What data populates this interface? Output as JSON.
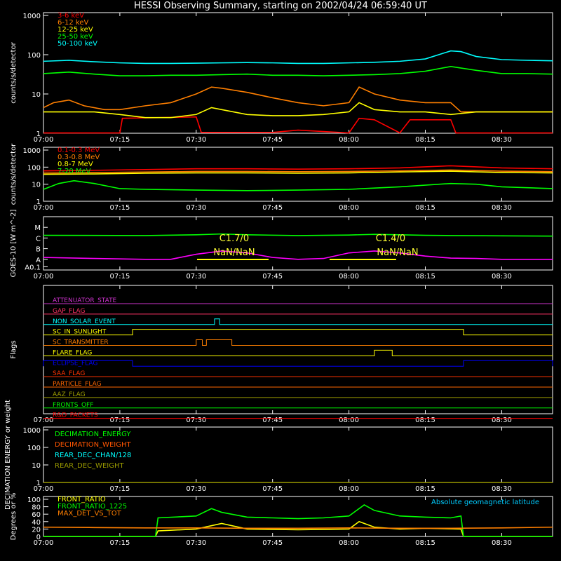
{
  "title": "HESSI Observing Summary, starting on 2002/04/24 06:59:40 UT",
  "time_ticks": [
    "07:00",
    "07:15",
    "07:30",
    "07:45",
    "08:00",
    "08:15",
    "08:30"
  ],
  "chart_data": [
    {
      "id": "rates",
      "type": "line",
      "ylabel": "counts/s/detector",
      "yscale": "log",
      "ylim": [
        1,
        1000
      ],
      "yticks": [
        "1",
        "10",
        "100",
        "1000"
      ],
      "series": [
        {
          "name": "3-6 keV",
          "color": "#ff0000",
          "x": [
            0,
            15,
            15.5,
            30,
            31,
            45,
            50,
            60,
            62,
            65,
            70,
            72,
            80,
            81,
            100
          ],
          "y": [
            1.02,
            1.02,
            2.4,
            2.6,
            1.05,
            1.05,
            1.2,
            1.02,
            2.4,
            2.2,
            1.02,
            2.2,
            2.2,
            1.02,
            1.02
          ]
        },
        {
          "name": "6-12 keV",
          "color": "#ff7f00",
          "x": [
            0,
            2,
            5,
            8,
            12,
            15,
            20,
            25,
            30,
            33,
            35,
            40,
            45,
            50,
            55,
            60,
            62,
            65,
            70,
            75,
            80,
            82,
            85,
            90,
            95,
            100
          ],
          "y": [
            4.5,
            6,
            7,
            5,
            4,
            4,
            5,
            6,
            10,
            15,
            14,
            11,
            8,
            6,
            5,
            6,
            15,
            10,
            7,
            6,
            6,
            3.5,
            3.5,
            3.5,
            3.5,
            3.5
          ]
        },
        {
          "name": "12-25 keV",
          "color": "#ffff00",
          "x": [
            0,
            5,
            10,
            15,
            20,
            25,
            30,
            33,
            35,
            40,
            45,
            50,
            55,
            60,
            62,
            65,
            70,
            75,
            80,
            85,
            90,
            95,
            100
          ],
          "y": [
            3.5,
            3.5,
            3.5,
            3,
            2.5,
            2.5,
            3,
            4.5,
            4,
            3,
            2.8,
            2.8,
            3,
            3.5,
            6,
            4,
            3.5,
            3.5,
            3,
            3.5,
            3.5,
            3.5,
            3.5
          ]
        },
        {
          "name": "25-50 keV",
          "color": "#00ff00",
          "x": [
            0,
            5,
            10,
            15,
            20,
            25,
            30,
            35,
            40,
            45,
            50,
            55,
            60,
            65,
            70,
            75,
            80,
            85,
            90,
            95,
            100
          ],
          "y": [
            33,
            36,
            32,
            29,
            29,
            30,
            30,
            31,
            32,
            30,
            30,
            29,
            30,
            31,
            33,
            38,
            50,
            40,
            33,
            33,
            32
          ]
        },
        {
          "name": "50-100 keV",
          "color": "#00ffff",
          "x": [
            0,
            5,
            10,
            15,
            20,
            25,
            30,
            35,
            40,
            45,
            50,
            55,
            60,
            65,
            70,
            75,
            80,
            82,
            85,
            90,
            95,
            100
          ],
          "y": [
            68,
            72,
            66,
            62,
            60,
            60,
            61,
            62,
            63,
            62,
            60,
            60,
            62,
            64,
            68,
            78,
            125,
            120,
            90,
            75,
            72,
            70
          ]
        }
      ]
    },
    {
      "id": "high-energy",
      "type": "line",
      "ylabel": "counts/s/detector",
      "yscale": "log",
      "ylim": [
        1,
        1000
      ],
      "yticks": [
        "1",
        "10",
        "100",
        "1000"
      ],
      "series": [
        {
          "name": "0.1-0.3 MeV",
          "color": "#ff0000",
          "x": [
            0,
            10,
            20,
            30,
            40,
            50,
            60,
            70,
            80,
            90,
            100
          ],
          "y": [
            60,
            65,
            72,
            80,
            80,
            76,
            80,
            90,
            120,
            90,
            80
          ]
        },
        {
          "name": "0.3-0.8 MeV",
          "color": "#ff7f00",
          "x": [
            0,
            10,
            20,
            30,
            40,
            50,
            60,
            70,
            80,
            90,
            100
          ],
          "y": [
            45,
            48,
            52,
            56,
            56,
            54,
            56,
            60,
            68,
            58,
            55
          ]
        },
        {
          "name": "0.8-7 MeV",
          "color": "#ffff00",
          "x": [
            0,
            10,
            20,
            30,
            40,
            50,
            60,
            70,
            80,
            90,
            100
          ],
          "y": [
            38,
            40,
            44,
            46,
            46,
            44,
            46,
            52,
            58,
            48,
            46
          ]
        },
        {
          "name": "7-20 MeV",
          "color": "#00ff00",
          "x": [
            0,
            3,
            6,
            10,
            15,
            20,
            30,
            40,
            50,
            60,
            70,
            80,
            85,
            90,
            100
          ],
          "y": [
            5,
            11,
            16,
            11,
            5.5,
            5,
            4.5,
            4.2,
            4.5,
            5,
            7,
            11,
            10,
            7,
            5.5
          ]
        }
      ]
    },
    {
      "id": "goes",
      "type": "line",
      "ylabel": "GOES-10 [W m^-2]",
      "yscale": "log",
      "yticks": [
        "A0.1",
        "A",
        "B",
        "C",
        "M"
      ],
      "annotations": [
        "C1.7/0",
        "NaN/NaN",
        "C1.4/0",
        "NaN/NaN"
      ],
      "series": [
        {
          "name": "",
          "color": "#00ff00",
          "x": [
            0,
            20,
            30,
            35,
            40,
            50,
            60,
            65,
            70,
            75,
            80,
            90,
            100
          ],
          "y": [
            1.8e-06,
            1.7e-06,
            2e-06,
            2.4e-06,
            2e-06,
            1.7e-06,
            1.9e-06,
            2.2e-06,
            2e-06,
            1.8e-06,
            1.7e-06,
            1.6e-06,
            1.5e-06
          ]
        },
        {
          "name": "",
          "color": "#ff00ff",
          "x": [
            0,
            10,
            20,
            25,
            30,
            35,
            40,
            45,
            50,
            55,
            60,
            65,
            70,
            75,
            80,
            85,
            90,
            100
          ],
          "y": [
            1.5e-08,
            1.2e-08,
            1e-08,
            1e-08,
            3e-08,
            6e-08,
            4e-08,
            1.5e-08,
            1e-08,
            1.2e-08,
            4e-08,
            6e-08,
            4e-08,
            2e-08,
            1.3e-08,
            1.2e-08,
            1e-08,
            1e-08
          ]
        }
      ]
    },
    {
      "id": "flags",
      "type": "line",
      "ylabel": "Flags",
      "flags": [
        {
          "name": "ATTENUATOR_STATE",
          "color": "#cc33cc",
          "on": []
        },
        {
          "name": "GAP_FLAG",
          "color": "#ff3366",
          "on": []
        },
        {
          "name": "NON_SOLAR_EVENT",
          "color": "#00ffff",
          "on": [
            [
              33.6,
              34.6
            ]
          ]
        },
        {
          "name": "SC_IN_SUNLIGHT",
          "color": "#ffff00",
          "on": [
            [
              17.5,
              82.5
            ]
          ]
        },
        {
          "name": "SC_TRANSMITTER",
          "color": "#ff7f00",
          "on": [
            [
              30,
              31.2
            ],
            [
              32,
              37
            ]
          ]
        },
        {
          "name": "FLARE_FLAG",
          "color": "#ffff00",
          "on": [
            [
              65,
              68.5
            ]
          ]
        },
        {
          "name": "ECLIPSE_FLAG",
          "color": "#0000ff",
          "on": [
            [
              0,
              17.5
            ],
            [
              82.5,
              100
            ]
          ]
        },
        {
          "name": "SAA_FLAG",
          "color": "#ff3300",
          "on": []
        },
        {
          "name": "PARTICLE_FLAG",
          "color": "#ff6600",
          "on": []
        },
        {
          "name": "AAZ_FLAG",
          "color": "#999900",
          "on": []
        },
        {
          "name": "FRONTS_OFF",
          "color": "#00ff00",
          "on": []
        },
        {
          "name": "R&D_PACKETS",
          "color": "#ff0000",
          "on": []
        }
      ]
    },
    {
      "id": "decimation",
      "type": "line",
      "ylabel": "DECIMATION ENERGY or weight",
      "yscale": "log",
      "ylim": [
        1,
        1000
      ],
      "yticks": [
        "1",
        "10",
        "100",
        "1000"
      ],
      "series": [
        {
          "name": "DECIMATION_ENERGY",
          "color": "#00ff00",
          "x": [],
          "y": []
        },
        {
          "name": "DECIMATION_WEIGHT",
          "color": "#ff5500",
          "x": [],
          "y": []
        },
        {
          "name": "REAR_DEC_CHAN/128",
          "color": "#00ffff",
          "x": [],
          "y": []
        },
        {
          "name": "REAR_DEC_WEIGHT",
          "color": "#999900",
          "x": [
            0,
            100
          ],
          "y": [
            1,
            1
          ]
        }
      ]
    },
    {
      "id": "ratios",
      "type": "line",
      "ylabel": "Degrees or %",
      "ylim": [
        0,
        100
      ],
      "yticks": [
        "0",
        "20",
        "40",
        "60",
        "80",
        "100"
      ],
      "annotations": [
        "Absolute geomagnetic latitude"
      ],
      "series": [
        {
          "name": "FRONT_RATIO",
          "color": "#ffff00",
          "x": [
            0,
            22,
            22.5,
            30,
            35,
            40,
            50,
            60,
            62,
            65,
            70,
            75,
            82,
            82.5,
            100
          ],
          "y": [
            0,
            0,
            15,
            20,
            35,
            20,
            18,
            20,
            40,
            25,
            20,
            22,
            20,
            0,
            0
          ]
        },
        {
          "name": "FRONT_RATIO_1225",
          "color": "#00ff00",
          "x": [
            0,
            22,
            22.5,
            30,
            33,
            35,
            40,
            45,
            50,
            55,
            60,
            63,
            65,
            70,
            75,
            80,
            82,
            82.5,
            100
          ],
          "y": [
            0,
            0,
            50,
            55,
            75,
            65,
            52,
            50,
            48,
            50,
            55,
            85,
            70,
            55,
            52,
            50,
            55,
            0,
            0
          ]
        },
        {
          "name": "MAX_DET_VS_TOT",
          "color": "#ff7f00",
          "x": [
            0,
            10,
            20,
            30,
            40,
            50,
            60,
            70,
            80,
            90,
            100
          ],
          "y": [
            25,
            24,
            23,
            23,
            22,
            22,
            23,
            22,
            22,
            23,
            25
          ]
        }
      ]
    }
  ]
}
